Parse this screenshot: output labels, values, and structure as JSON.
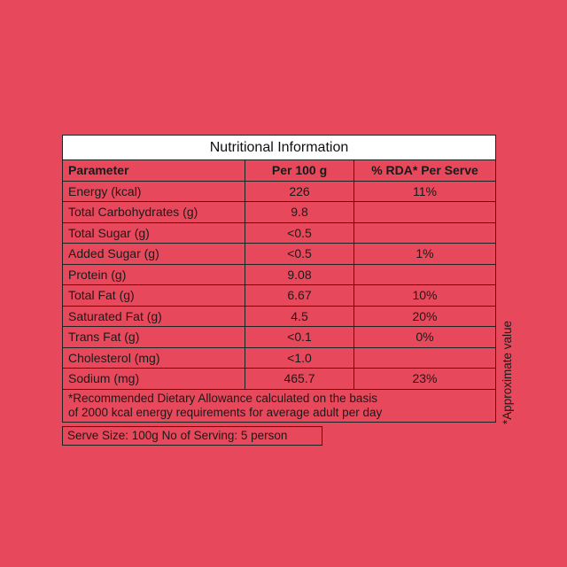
{
  "table": {
    "title": "Nutritional Information",
    "headers": [
      "Parameter",
      "Per 100 g",
      "% RDA* Per Serve"
    ],
    "rows": [
      [
        "Energy (kcal)",
        "226",
        "11%"
      ],
      [
        "Total Carbohydrates (g)",
        "9.8",
        ""
      ],
      [
        "Total Sugar (g)",
        "<0.5",
        ""
      ],
      [
        "Added Sugar (g)",
        "<0.5",
        "1%"
      ],
      [
        "Protein (g)",
        "9.08",
        ""
      ],
      [
        "Total Fat (g)",
        "6.67",
        "10%"
      ],
      [
        "Saturated Fat (g)",
        "4.5",
        "20%"
      ],
      [
        "Trans Fat (g)",
        "<0.1",
        "0%"
      ],
      [
        "Cholesterol (mg)",
        "<1.0",
        ""
      ],
      [
        "Sodium (mg)",
        "465.7",
        "23%"
      ]
    ],
    "footnote_line1": "*Recommended Dietary Allowance calculated on the basis",
    "footnote_line2": "of 2000 kcal energy requirements for average  adult per day"
  },
  "serve_size": "Serve Size: 100g No of Serving: 5 person",
  "side_note": "*Approximate value",
  "colors": {
    "background": "#e8485b",
    "title_background": "#ffffff",
    "border": "#222222"
  }
}
